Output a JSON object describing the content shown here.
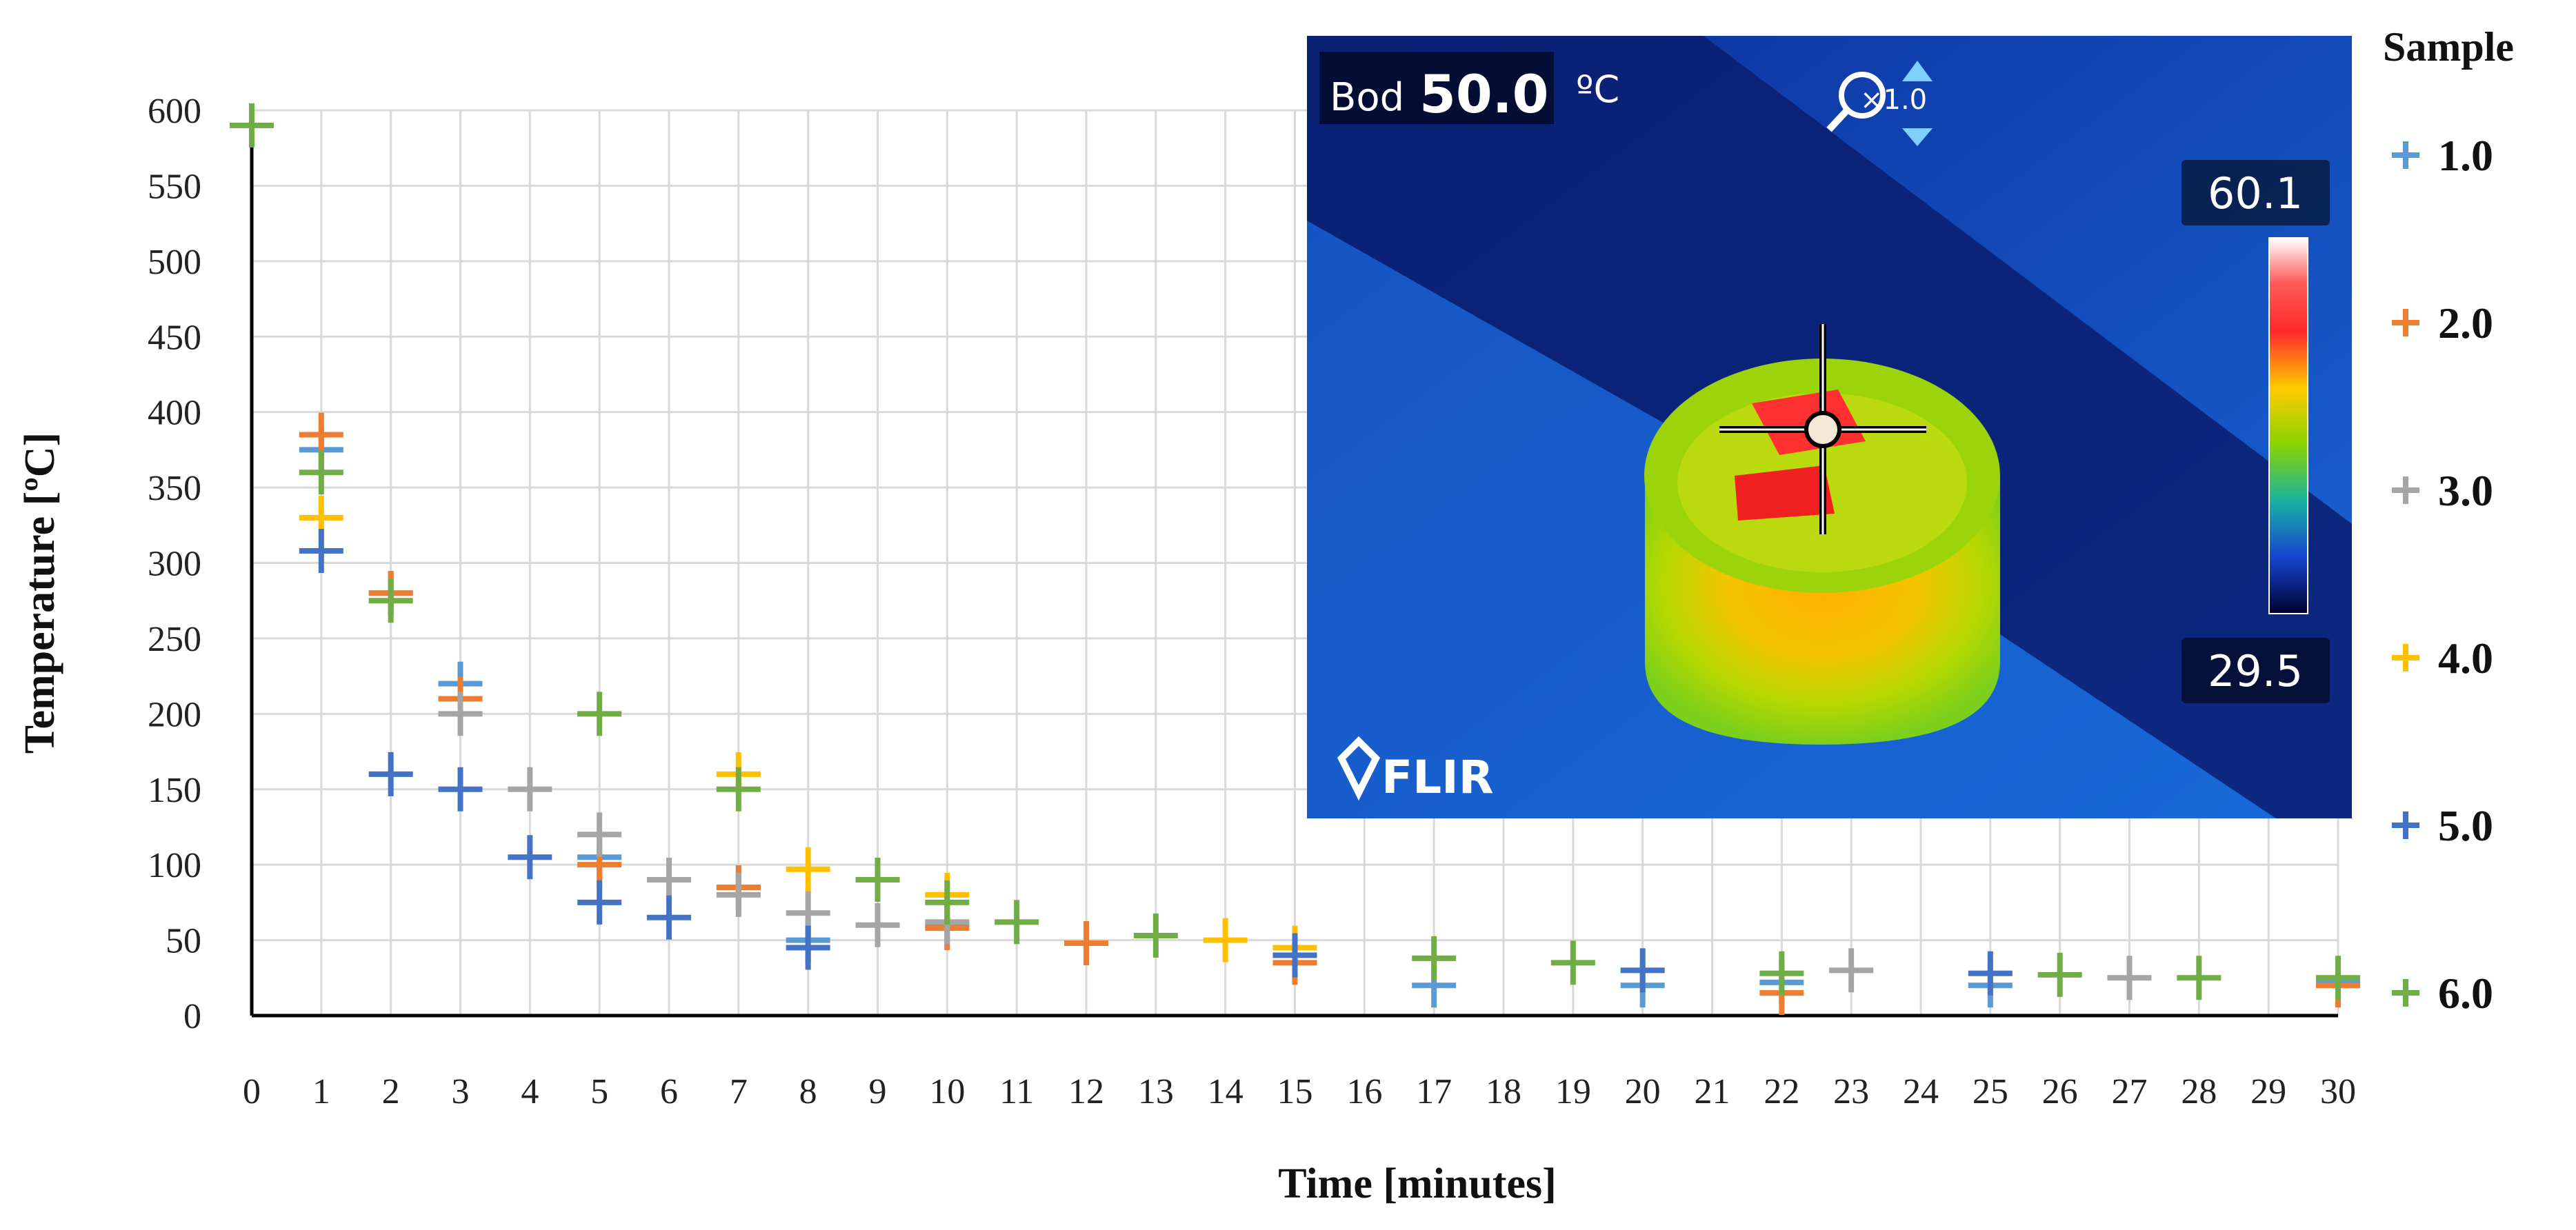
{
  "chart_data": {
    "type": "scatter",
    "xlabel": "Time [minutes]",
    "ylabel": "Temperature [ºC]",
    "xlim": [
      0,
      30
    ],
    "ylim": [
      0,
      600
    ],
    "x_ticks": [
      0,
      1,
      2,
      3,
      4,
      5,
      6,
      7,
      8,
      9,
      10,
      11,
      12,
      13,
      14,
      15,
      16,
      17,
      18,
      19,
      20,
      21,
      22,
      23,
      24,
      25,
      26,
      27,
      28,
      29,
      30
    ],
    "y_ticks": [
      0,
      50,
      100,
      150,
      200,
      250,
      300,
      350,
      400,
      450,
      500,
      550,
      600
    ],
    "grid": true,
    "legend_title": "Sample",
    "legend_position": "right",
    "marker": "+",
    "series": [
      {
        "name": "1.0",
        "color": "#5b9bd5",
        "points": [
          [
            1,
            375
          ],
          [
            2,
            280
          ],
          [
            3,
            220
          ],
          [
            5,
            105
          ],
          [
            7,
            85
          ],
          [
            8,
            50
          ],
          [
            10,
            60
          ],
          [
            12,
            48
          ],
          [
            15,
            40
          ],
          [
            17,
            20
          ],
          [
            20,
            20
          ],
          [
            22,
            22
          ],
          [
            25,
            20
          ],
          [
            30,
            22
          ]
        ]
      },
      {
        "name": "2.0",
        "color": "#ed7d31",
        "points": [
          [
            1,
            385
          ],
          [
            2,
            280
          ],
          [
            3,
            210
          ],
          [
            5,
            100
          ],
          [
            7,
            85
          ],
          [
            10,
            58
          ],
          [
            12,
            48
          ],
          [
            15,
            35
          ],
          [
            22,
            15
          ],
          [
            30,
            20
          ]
        ]
      },
      {
        "name": "3.0",
        "color": "#a5a5a5",
        "points": [
          [
            3,
            200
          ],
          [
            4,
            150
          ],
          [
            5,
            120
          ],
          [
            6,
            90
          ],
          [
            7,
            80
          ],
          [
            8,
            68
          ],
          [
            9,
            60
          ],
          [
            10,
            62
          ],
          [
            23,
            30
          ],
          [
            27,
            25
          ]
        ]
      },
      {
        "name": "4.0",
        "color": "#ffc000",
        "points": [
          [
            1,
            330
          ],
          [
            7,
            160
          ],
          [
            8,
            97
          ],
          [
            10,
            80
          ],
          [
            14,
            50
          ],
          [
            15,
            45
          ]
        ]
      },
      {
        "name": "5.0",
        "color": "#4472c4",
        "points": [
          [
            1,
            308
          ],
          [
            2,
            160
          ],
          [
            3,
            150
          ],
          [
            4,
            105
          ],
          [
            5,
            75
          ],
          [
            6,
            65
          ],
          [
            8,
            45
          ],
          [
            15,
            40
          ],
          [
            20,
            30
          ],
          [
            25,
            28
          ]
        ]
      },
      {
        "name": "6.0",
        "color": "#70ad47",
        "points": [
          [
            0,
            590
          ],
          [
            1,
            360
          ],
          [
            2,
            275
          ],
          [
            5,
            200
          ],
          [
            7,
            150
          ],
          [
            9,
            90
          ],
          [
            10,
            75
          ],
          [
            11,
            62
          ],
          [
            13,
            53
          ],
          [
            17,
            38
          ],
          [
            19,
            35
          ],
          [
            22,
            28
          ],
          [
            26,
            27
          ],
          [
            28,
            25
          ],
          [
            30,
            25
          ]
        ]
      }
    ]
  },
  "thermal_image": {
    "mode_label": "Bod",
    "spot_value": "50.0",
    "unit": "ºC",
    "zoom_label": "×1.0",
    "scale_max": "60.1",
    "scale_min": "29.5",
    "brand": "FLIR"
  }
}
